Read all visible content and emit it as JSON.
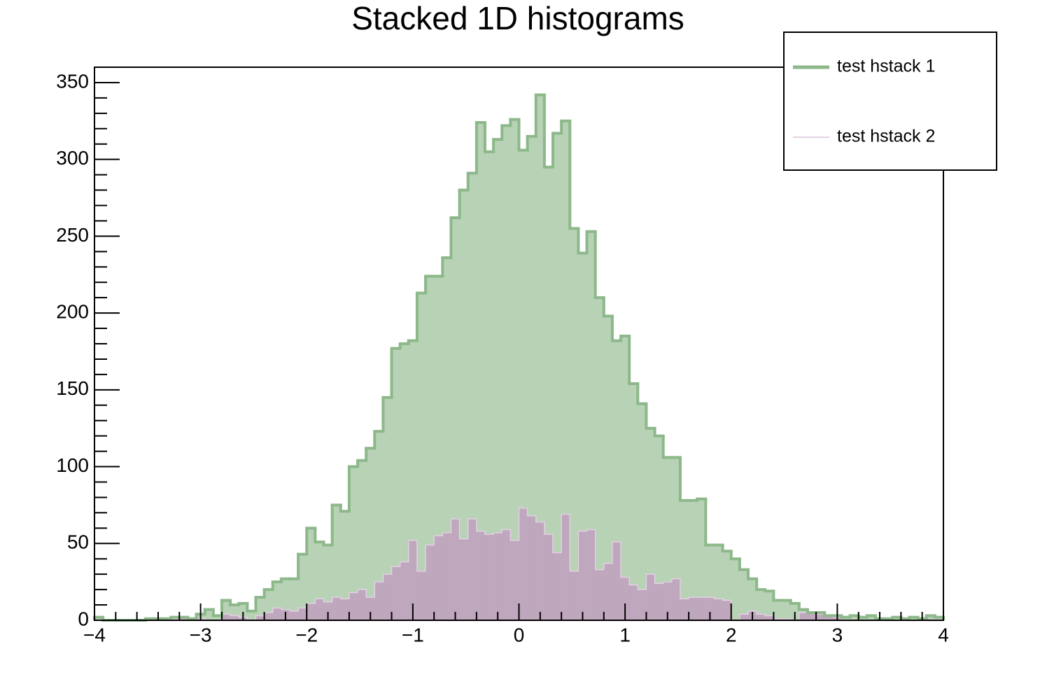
{
  "chart_data": {
    "type": "histogram",
    "title": "Stacked 1D histograms",
    "stacked": true,
    "bins": [
      -4,
      -3.92,
      -3.84,
      -3.76,
      -3.68,
      -3.6,
      -3.52,
      -3.44,
      -3.36,
      -3.28,
      -3.2,
      -3.12,
      -3.04,
      -2.96,
      -2.88,
      -2.8,
      -2.72,
      -2.64,
      -2.56,
      -2.48,
      -2.4,
      -2.32,
      -2.24,
      -2.16,
      -2.08,
      -2,
      -1.92,
      -1.84,
      -1.76,
      -1.68,
      -1.6,
      -1.52,
      -1.44,
      -1.36,
      -1.28,
      -1.2,
      -1.12,
      -1.04,
      -0.96,
      -0.88,
      -0.8,
      -0.72,
      -0.64,
      -0.56,
      -0.48,
      -0.4,
      -0.32,
      -0.24,
      -0.16,
      -0.08,
      0,
      0.08,
      0.16,
      0.24,
      0.32,
      0.4,
      0.48,
      0.56,
      0.64,
      0.72,
      0.8,
      0.88,
      0.96,
      1.04,
      1.12,
      1.2,
      1.28,
      1.36,
      1.44,
      1.52,
      1.6,
      1.68,
      1.76,
      1.84,
      1.92,
      2,
      2.08,
      2.16,
      2.24,
      2.32,
      2.4,
      2.48,
      2.56,
      2.64,
      2.72,
      2.8,
      2.88,
      2.96,
      3.04,
      3.12,
      3.2,
      3.28,
      3.36,
      3.44,
      3.52,
      3.6,
      3.68,
      3.76,
      3.84,
      3.92,
      4
    ],
    "series": [
      {
        "name": "test hstack 1",
        "color": "#8db88a",
        "fill_color": "#b8d2b6",
        "values": [
          2,
          0,
          0,
          0,
          0,
          0,
          1,
          1,
          0,
          1,
          0,
          0,
          3,
          7,
          3,
          9,
          7,
          9,
          6,
          12,
          15,
          17,
          20,
          21,
          35,
          49,
          37,
          37,
          60,
          57,
          82,
          84,
          97,
          98,
          115,
          142,
          142,
          130,
          181,
          175,
          169,
          179,
          196,
          227,
          225,
          266,
          249,
          256,
          263,
          274,
          233,
          247,
          278,
          239,
          273,
          256,
          223,
          181,
          194,
          177,
          161,
          131,
          157,
          131,
          121,
          95,
          96,
          81,
          79,
          64,
          63,
          64,
          34,
          35,
          32,
          40,
          29,
          21,
          16,
          16,
          12,
          12,
          11,
          2,
          0,
          1,
          0,
          1,
          2,
          3,
          2,
          3,
          1,
          1,
          2,
          1,
          2,
          1,
          3,
          1
        ]
      },
      {
        "name": "test hstack 2",
        "color": "#e3d0e4",
        "fill_color": "#bfa7bd",
        "values": [
          0,
          0,
          0,
          0,
          0,
          0,
          0,
          0,
          1,
          1,
          2,
          1,
          1,
          0,
          0,
          4,
          3,
          2,
          0,
          3,
          5,
          8,
          7,
          6,
          8,
          11,
          14,
          12,
          15,
          14,
          18,
          20,
          15,
          25,
          30,
          35,
          38,
          52,
          32,
          49,
          55,
          57,
          66,
          53,
          66,
          58,
          56,
          57,
          59,
          52,
          73,
          68,
          64,
          56,
          44,
          69,
          32,
          58,
          59,
          33,
          37,
          51,
          28,
          23,
          20,
          30,
          24,
          25,
          27,
          14,
          15,
          15,
          15,
          14,
          13,
          0,
          4,
          6,
          4,
          3,
          1,
          1,
          0,
          5,
          5,
          4,
          3,
          2,
          0,
          0,
          0,
          0,
          0,
          0,
          0,
          0,
          0,
          0,
          0,
          1
        ]
      }
    ],
    "xlim": [
      -4,
      4
    ],
    "xticks": [
      {
        "value": -4,
        "label": "−4"
      },
      {
        "value": -3,
        "label": "−3"
      },
      {
        "value": -2,
        "label": "−2"
      },
      {
        "value": -1,
        "label": "−1"
      },
      0,
      1,
      2,
      3,
      4
    ],
    "ylim": [
      0,
      360
    ],
    "yticks": [
      0,
      50,
      100,
      150,
      200,
      250,
      300,
      350
    ],
    "grid": false,
    "legend": "top-right"
  }
}
